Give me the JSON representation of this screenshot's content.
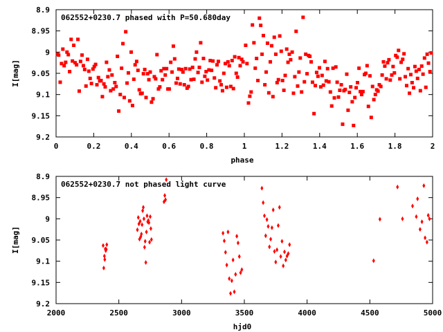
{
  "colors": {
    "points": "#ff0000",
    "axes": "#000000",
    "background": "#ffffff"
  },
  "chart_data": [
    {
      "type": "scatter",
      "title": "062552+0230.7 phased with P=50.680day",
      "xlabel": "phase",
      "ylabel": "I[mag]",
      "xlim": [
        0,
        2
      ],
      "ylim": [
        8.9,
        9.2
      ],
      "y_reversed": true,
      "x_ticks": [
        "0",
        "0.2",
        "0.4",
        "0.6",
        "0.8",
        "1",
        "1.2",
        "1.4",
        "1.6",
        "1.8",
        "2"
      ],
      "y_ticks": [
        "8.9",
        "8.95",
        "9",
        "9.05",
        "9.1",
        "9.15",
        "9.2"
      ],
      "grid": false,
      "marker": "filled-square",
      "series": [
        {
          "x": [
            0.007,
            0.014,
            0.022,
            0.029,
            0.036,
            0.043,
            0.051,
            0.058,
            0.065,
            0.072,
            0.08,
            0.087,
            0.094,
            0.101,
            0.109,
            0.116,
            0.123,
            0.13,
            0.138,
            0.145,
            0.152,
            0.159,
            0.167,
            0.174,
            0.181,
            0.188,
            0.196,
            0.203,
            0.21,
            0.217,
            0.225,
            0.232,
            0.239,
            0.246,
            0.254,
            0.261,
            0.268,
            0.275,
            0.283,
            0.29,
            0.297,
            0.304,
            0.312,
            0.319,
            0.326,
            0.333,
            0.341,
            0.348,
            0.355,
            0.362,
            0.37,
            0.377,
            0.384,
            0.391,
            0.399,
            0.406,
            0.413,
            0.42,
            0.428,
            0.435,
            0.442,
            0.449,
            0.457,
            0.464,
            0.471,
            0.478,
            0.486,
            0.493,
            0.5,
            0.507,
            0.515,
            0.522,
            0.529,
            0.536,
            0.544,
            0.551,
            0.558,
            0.565,
            0.573,
            0.58,
            0.587,
            0.594,
            0.601,
            0.609,
            0.616,
            0.623,
            0.63,
            0.638,
            0.645,
            0.652,
            0.659,
            0.667,
            0.674,
            0.681,
            0.688,
            0.696,
            0.703,
            0.71,
            0.717,
            0.725,
            0.732,
            0.739,
            0.746,
            0.754,
            0.761,
            0.768,
            0.775,
            0.783,
            0.79,
            0.797,
            0.804,
            0.812,
            0.819,
            0.826,
            0.833,
            0.841,
            0.848,
            0.855,
            0.862,
            0.87,
            0.877,
            0.884,
            0.891,
            0.899,
            0.906,
            0.913,
            0.92,
            0.928,
            0.935,
            0.942,
            0.949,
            0.957,
            0.964,
            0.971,
            0.978,
            0.986,
            0.993
          ],
          "y": [
            9.005,
            9.007,
            9.071,
            9.027,
            8.993,
            9.032,
            9.024,
            9.0,
            9.006,
            9.046,
            8.97,
            9.021,
            8.984,
            9.025,
            9.03,
            8.97,
            9.092,
            9.022,
            9.007,
            9.032,
            9.041,
            9.08,
            9.017,
            9.045,
            9.062,
            9.074,
            9.04,
            9.034,
            9.029,
            9.077,
            9.06,
            9.068,
            9.067,
            9.105,
            9.075,
            9.082,
            9.024,
            9.058,
            9.042,
            9.091,
            9.054,
            9.087,
            9.072,
            9.081,
            9.01,
            9.139,
            9.1,
            9.038,
            8.98,
            9.107,
            8.952,
            9.073,
            9.049,
            9.115,
            9.0,
            9.126,
            9.064,
            9.03,
            9.022,
            9.043,
            9.089,
            9.098,
            9.097,
            9.051,
            9.041,
            9.107,
            9.051,
            9.065,
            9.047,
            9.118,
            9.11,
            9.058,
            9.063,
            9.006,
            9.087,
            9.082,
            9.044,
            9.065,
            9.039,
            9.054,
            9.039,
            9.087,
            9.087,
            9.024,
            9.047,
            8.986,
            9.016,
            9.073,
            9.062,
            9.04,
            9.075,
            9.041,
            9.047,
            9.077,
            9.039,
            9.085,
            9.081,
            9.04,
            9.065,
            9.036,
            9.064,
            9.016,
            9.0,
            9.048,
            9.036,
            8.978,
            9.071,
            9.015,
            9.057,
            9.046,
            9.066,
            9.042,
            9.02,
            9.043,
            9.021,
            9.061,
            9.084,
            9.03,
            9.022,
            9.068,
            9.077,
            9.091,
            9.05,
            9.027,
            9.083,
            9.023,
            9.032,
            9.081,
            9.02,
            9.086,
            9.011,
            9.05,
            9.059,
            9.013,
            9.032,
            9.017,
            9.023
          ],
          "x2": [
            1.007,
            1.014,
            1.022,
            1.029,
            1.036,
            1.043,
            1.051,
            1.058,
            1.065,
            1.072,
            1.08,
            1.087,
            1.094,
            1.101,
            1.109,
            1.116,
            1.123,
            1.13,
            1.138,
            1.145,
            1.152,
            1.159,
            1.167,
            1.174,
            1.181,
            1.188,
            1.196,
            1.203,
            1.21,
            1.217,
            1.225,
            1.232,
            1.239,
            1.246,
            1.254,
            1.261,
            1.268,
            1.275,
            1.283,
            1.29,
            1.297,
            1.304,
            1.312,
            1.319,
            1.326,
            1.333,
            1.341,
            1.348,
            1.355,
            1.362,
            1.37,
            1.377,
            1.384,
            1.391,
            1.399,
            1.406,
            1.413,
            1.42,
            1.428,
            1.435,
            1.442,
            1.449,
            1.457,
            1.464,
            1.471,
            1.478,
            1.486,
            1.493,
            1.5,
            1.507,
            1.515,
            1.522,
            1.529,
            1.536,
            1.544,
            1.551,
            1.558,
            1.565,
            1.573,
            1.58,
            1.587,
            1.594,
            1.601,
            1.609,
            1.616,
            1.623,
            1.63,
            1.638,
            1.645,
            1.652,
            1.659,
            1.667,
            1.674,
            1.681,
            1.688,
            1.696,
            1.703,
            1.71,
            1.717,
            1.725,
            1.732,
            1.739,
            1.746,
            1.754,
            1.761,
            1.768,
            1.775,
            1.783,
            1.79,
            1.797,
            1.804,
            1.812,
            1.819,
            1.826,
            1.833,
            1.841,
            1.848,
            1.855,
            1.862,
            1.87,
            1.877,
            1.884,
            1.891,
            1.899,
            1.906,
            1.913,
            1.92,
            1.928,
            1.935,
            1.942,
            1.949,
            1.957,
            1.964,
            1.971,
            1.978,
            1.986,
            1.993
          ],
          "y2": [
            8.984,
            9.027,
            9.12,
            9.104,
            9.094,
            8.936,
            8.978,
            9.038,
            9.015,
            9.067,
            8.92,
            8.937,
            9.005,
            8.961,
            9.077,
            9.047,
            8.979,
            9.096,
            9.023,
            8.985,
            9.105,
            8.965,
            9.005,
            9.072,
            9.065,
            8.962,
            8.998,
            9.067,
            9.09,
            9.055,
            8.993,
            9.024,
            9.005,
            9.018,
            9.0,
            9.097,
            9.058,
            8.951,
            9.08,
            9.047,
            9.014,
            9.094,
            8.918,
            9.07,
            9.005,
            9.051,
            9.008,
            9.01,
            9.023,
            9.071,
            9.145,
            9.079,
            9.048,
            9.057,
            9.037,
            9.082,
            9.055,
            9.078,
            9.022,
            9.068,
            9.039,
            9.07,
            9.094,
            9.127,
            9.038,
            9.108,
            9.035,
            9.071,
            9.106,
            9.09,
            9.077,
            9.17,
            9.091,
            9.088,
            9.052,
            9.137,
            9.095,
            9.082,
            9.117,
            9.173,
            9.107,
            9.084,
            9.072,
            9.038,
            9.093,
            9.1,
            9.093,
            9.053,
            9.05,
            9.032,
            9.128,
            9.056,
            9.154,
            9.081,
            9.112,
            9.1,
            9.089,
            9.092,
            9.077,
            9.081,
            9.054,
            9.023,
            9.033,
            9.063,
            9.025,
            9.018,
            9.066,
            9.054,
            9.034,
            9.049,
            9.008,
            9.012,
            8.996,
            9.063,
            9.024,
            9.017,
            9.004,
            9.058,
            9.079,
            9.039,
            9.097,
            9.053,
            9.072,
            9.084,
            9.034,
            9.045,
            9.062,
            9.041,
            9.091,
            9.033,
            9.052,
            9.014,
            9.083,
            9.005,
            9.026,
            9.046,
            9.002
          ]
        }
      ]
    },
    {
      "type": "scatter",
      "title": "062552+0230.7 not phased light curve",
      "xlabel": "hjd0",
      "ylabel": "I[mag]",
      "xlim": [
        2000,
        5000
      ],
      "ylim": [
        8.9,
        9.2
      ],
      "y_reversed": true,
      "x_ticks": [
        "2000",
        "2500",
        "3000",
        "3500",
        "4000",
        "4500",
        "5000"
      ],
      "y_ticks": [
        "8.9",
        "8.95",
        "9",
        "9.05",
        "9.1",
        "9.15",
        "9.2"
      ],
      "grid": false,
      "marker": "diamond",
      "series": [
        {
          "x": [
            2375,
            2380,
            2385,
            2388,
            2392,
            2396,
            2400,
            2404,
            2648,
            2655,
            2660,
            2665,
            2670,
            2675,
            2680,
            2685,
            2690,
            2695,
            2700,
            2705,
            2710,
            2715,
            2720,
            2725,
            2730,
            2735,
            2740,
            2745,
            2750,
            2755,
            2760,
            2860,
            2866,
            2872,
            2878,
            3330,
            3340,
            3350,
            3360,
            3370,
            3380,
            3390,
            3400,
            3410,
            3420,
            3430,
            3440,
            3450,
            3460,
            3470,
            3480,
            3640,
            3650,
            3660,
            3670,
            3680,
            3690,
            3700,
            3710,
            3720,
            3730,
            3740,
            3750,
            3760,
            3770,
            3780,
            3790,
            3800,
            3810,
            3820,
            3830,
            3840,
            3850,
            3860,
            4530,
            4580,
            4720,
            4760,
            4840,
            4870,
            4880,
            4900,
            4915,
            4930,
            4940,
            4955,
            4965,
            4975
          ],
          "y": [
            9.063,
            9.116,
            9.088,
            9.096,
            9.071,
            9.075,
            9.072,
            9.061,
            9.026,
            8.997,
            9.012,
            9.048,
            9.006,
            9.042,
            9.036,
            9.014,
            8.981,
            8.973,
            9.0,
            9.067,
            9.053,
            9.103,
            9.031,
            8.993,
            9.007,
            9.004,
            9.009,
            9.055,
            8.995,
            9.023,
            9.049,
            8.96,
            8.945,
            8.955,
            8.908,
            9.034,
            9.052,
            9.079,
            9.109,
            9.031,
            9.141,
            9.176,
            9.146,
            9.097,
            9.172,
            9.131,
            9.041,
            9.057,
            9.089,
            9.127,
            9.12,
            8.928,
            8.962,
            8.993,
            9.04,
            9.002,
            9.018,
            9.066,
            9.048,
            9.021,
            8.979,
            9.077,
            9.102,
            9.073,
            9.016,
            8.973,
            9.089,
            9.053,
            9.111,
            9.078,
            9.097,
            9.088,
            9.082,
            9.061,
            9.099,
            9.001,
            8.925,
            9.0,
            8.97,
            8.995,
            8.953,
            9.025,
            9.007,
            8.922,
            9.045,
            9.055,
            8.992,
            9.0
          ]
        }
      ]
    }
  ]
}
